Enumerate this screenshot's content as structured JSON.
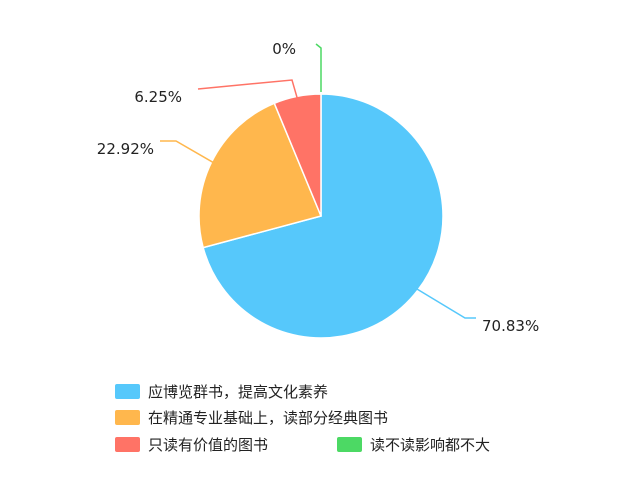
{
  "chart_data": {
    "type": "pie",
    "title": "",
    "slices": [
      {
        "label": "应博览群书，提高文化素养",
        "value": 70.83,
        "display": "70.83%",
        "color": "#56c8fb"
      },
      {
        "label": "在精通专业基础上，读部分经典图书",
        "value": 22.92,
        "display": "22.92%",
        "color": "#ffb74d"
      },
      {
        "label": "只读有价值的图书",
        "value": 6.25,
        "display": "6.25%",
        "color": "#ff7366"
      },
      {
        "label": "读不读影响都不大",
        "value": 0,
        "display": "0%",
        "color": "#4cd964"
      }
    ],
    "legend_position": "bottom"
  }
}
